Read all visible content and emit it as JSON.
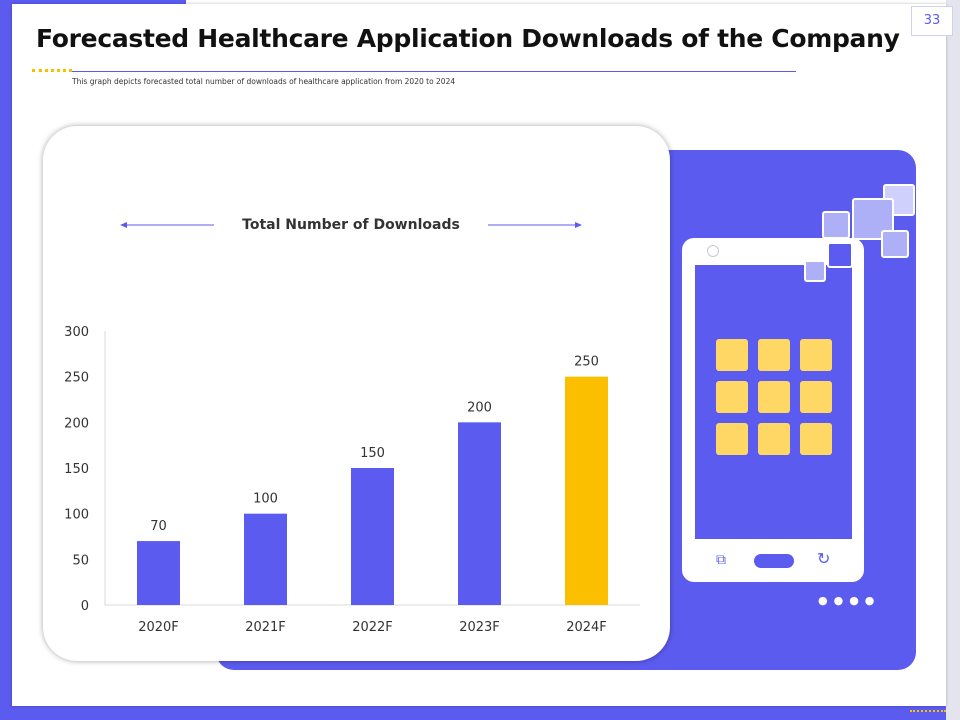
{
  "page": {
    "number": "33",
    "title": "Forecasted Healthcare Application Downloads of the Company",
    "subtitle": "This graph depicts forecasted total number of downloads of healthcare application from 2020 to 2024"
  },
  "colors": {
    "primary": "#5b5bf0",
    "highlight": "#fbbf00",
    "tile": "#ffd765"
  },
  "chart_data": {
    "type": "bar",
    "title": "Total Number of Downloads",
    "categories": [
      "2020F",
      "2021F",
      "2022F",
      "2023F",
      "2024F"
    ],
    "values": [
      70,
      100,
      150,
      200,
      250
    ],
    "data_labels": [
      "70",
      "100",
      "150",
      "200",
      "250"
    ],
    "highlight_index": 4,
    "ylim": [
      0,
      300
    ],
    "yticks": [
      0,
      50,
      100,
      150,
      200,
      250,
      300
    ],
    "ytick_labels": [
      "0",
      "50",
      "100",
      "150",
      "200",
      "250",
      "300"
    ],
    "xlabel": "",
    "ylabel": "",
    "grid": false
  },
  "illustration": {
    "phone_icon": "smartphone-icon",
    "app_tile_count": 9,
    "nav_icons": [
      "copy-icon",
      "home-button-icon",
      "refresh-icon"
    ]
  }
}
